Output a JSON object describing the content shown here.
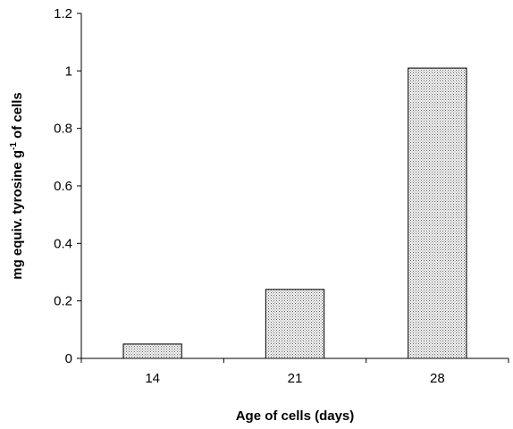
{
  "chart_data": {
    "type": "bar",
    "title": "",
    "xlabel": "Age of cells (days)",
    "ylabel_parts": {
      "before_sup": "mg equiv. tyrosine g",
      "sup": "-1",
      "after_sup": " of cells"
    },
    "categories": [
      "14",
      "21",
      "28"
    ],
    "values": [
      0.05,
      0.24,
      1.01
    ],
    "ylim": [
      0,
      1.2
    ],
    "yticks": [
      0,
      0.2,
      0.4,
      0.6,
      0.8,
      1,
      1.2
    ],
    "ytick_labels": [
      "0",
      "0.2",
      "0.4",
      "0.6",
      "0.8",
      "1",
      "1.2"
    ],
    "grid": false,
    "legend": "none",
    "bar_fill": "dotted-gray",
    "colors": {
      "bar_pattern_bg": "#ffffff",
      "bar_pattern_dot": "#555555",
      "axis": "#000000"
    }
  }
}
